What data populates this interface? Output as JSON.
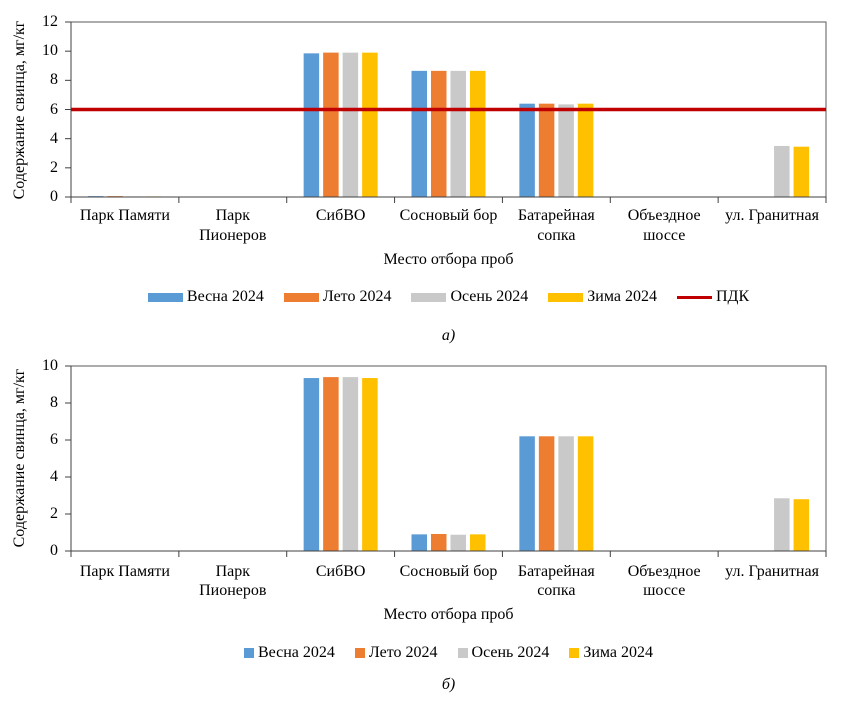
{
  "chart_data": [
    {
      "type": "bar",
      "caption": "а)",
      "xlabel": "Место отбора проб",
      "ylabel": "Содержание свинца, мг/кг",
      "ylim": [
        0,
        12
      ],
      "yticks": [
        0,
        2,
        4,
        6,
        8,
        10,
        12
      ],
      "grid": false,
      "legend_position": "bottom",
      "categories": [
        "Парк Памяти",
        "Парк\nПионеров",
        "СибВО",
        "Сосновый бор",
        "Батарейная\nсопка",
        "Объездное\nшоссе",
        "ул. Гранитная"
      ],
      "series": [
        {
          "name": "Весна 2024",
          "color": "#5B9BD5",
          "values": [
            0.06,
            0,
            9.85,
            8.65,
            6.4,
            0,
            0
          ]
        },
        {
          "name": "Лето 2024",
          "color": "#ED7D31",
          "values": [
            0.06,
            0,
            9.9,
            8.65,
            6.4,
            0,
            0
          ]
        },
        {
          "name": "Осень 2024",
          "color": "#C9C9C9",
          "values": [
            0.04,
            0,
            9.9,
            8.65,
            6.35,
            0,
            3.5
          ]
        },
        {
          "name": "Зима 2024",
          "color": "#FFC000",
          "values": [
            0.04,
            0,
            9.9,
            8.65,
            6.4,
            0,
            3.45
          ]
        }
      ],
      "reference_lines": [
        {
          "name": "ПДК",
          "color": "#C00000",
          "y": 6
        }
      ]
    },
    {
      "type": "bar",
      "caption": "б)",
      "xlabel": "Место отбора проб",
      "ylabel": "Содержание свинца, мг/кг",
      "ylim": [
        0,
        10
      ],
      "yticks": [
        0,
        2,
        4,
        6,
        8,
        10
      ],
      "grid": false,
      "legend_position": "bottom",
      "categories": [
        "Парк Памяти",
        "Парк\nПионеров",
        "СибВО",
        "Сосновый бор",
        "Батарейная\nсопка",
        "Объездное\nшоссе",
        "ул. Гранитная"
      ],
      "series": [
        {
          "name": "Весна 2024",
          "color": "#5B9BD5",
          "values": [
            0,
            0,
            9.35,
            0.9,
            6.2,
            0,
            0
          ]
        },
        {
          "name": "Лето 2024",
          "color": "#ED7D31",
          "values": [
            0,
            0,
            9.4,
            0.92,
            6.2,
            0,
            0
          ]
        },
        {
          "name": "Осень 2024",
          "color": "#C9C9C9",
          "values": [
            0,
            0,
            9.4,
            0.88,
            6.2,
            0,
            2.85
          ]
        },
        {
          "name": "Зима 2024",
          "color": "#FFC000",
          "values": [
            0,
            0,
            9.35,
            0.9,
            6.2,
            0,
            2.8
          ]
        }
      ],
      "reference_lines": []
    }
  ]
}
